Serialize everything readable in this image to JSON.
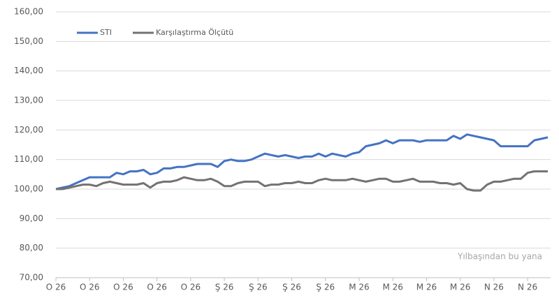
{
  "chart_data": {
    "type": "line",
    "annotation": "Yılbaşından bu yana",
    "categories": [
      "O 26",
      null,
      null,
      null,
      null,
      "O 26",
      null,
      null,
      null,
      null,
      "O 26",
      null,
      null,
      null,
      null,
      "O 26",
      null,
      null,
      null,
      null,
      "O 26",
      null,
      null,
      null,
      null,
      "Ş 26",
      null,
      null,
      null,
      null,
      "Ş 26",
      null,
      null,
      null,
      null,
      "Ş 26",
      null,
      null,
      null,
      null,
      "Ş 26",
      null,
      null,
      null,
      null,
      "M 26",
      null,
      null,
      null,
      null,
      "M 26",
      null,
      null,
      null,
      null,
      "M 26",
      null,
      null,
      null,
      null,
      "M 26",
      null,
      null,
      null,
      null,
      "N 26",
      null,
      null,
      null,
      null,
      "N 26",
      null,
      null,
      null
    ],
    "series": [
      {
        "name": "STI",
        "color": "#4472c4",
        "values": [
          100,
          100.5,
          101,
          102,
          103,
          104,
          104,
          104,
          104,
          105.5,
          105,
          106,
          106,
          106.5,
          105,
          105.5,
          107,
          107,
          107.5,
          107.5,
          108,
          108.5,
          108.5,
          108.5,
          107.5,
          109.5,
          110,
          109.5,
          109.5,
          110,
          111,
          112,
          111.5,
          111,
          111.5,
          111,
          110.5,
          111,
          111,
          112,
          111,
          112,
          111.5,
          111,
          112,
          112.5,
          114.5,
          115,
          115.5,
          116.5,
          115.5,
          116.5,
          116.5,
          116.5,
          116,
          116.5,
          116.5,
          116.5,
          116.5,
          118,
          117,
          118.5,
          118,
          117.5,
          117,
          116.5,
          114.5,
          114.5,
          114.5,
          114.5,
          114.5,
          116.5,
          117,
          117.5
        ]
      },
      {
        "name": "Karşılaştırma Ölçütü",
        "color": "#767171",
        "values": [
          100,
          100,
          100.5,
          101,
          101.5,
          101.5,
          101,
          102,
          102.5,
          102,
          101.5,
          101.5,
          101.5,
          102,
          100.5,
          102,
          102.5,
          102.5,
          103,
          104,
          103.5,
          103,
          103,
          103.5,
          102.5,
          101,
          101,
          102,
          102.5,
          102.5,
          102.5,
          101,
          101.5,
          101.5,
          102,
          102,
          102.5,
          102,
          102,
          103,
          103.5,
          103,
          103,
          103,
          103.5,
          103,
          102.5,
          103,
          103.5,
          103.5,
          102.5,
          102.5,
          103,
          103.5,
          102.5,
          102.5,
          102.5,
          102,
          102,
          101.5,
          102,
          100,
          99.5,
          99.5,
          101.5,
          102.5,
          102.5,
          103,
          103.5,
          103.5,
          105.5,
          106,
          106,
          106
        ]
      }
    ],
    "ylim": [
      70,
      160
    ],
    "yticks": [
      {
        "value": 70,
        "label": "70,00"
      },
      {
        "value": 80,
        "label": "80,00"
      },
      {
        "value": 90,
        "label": "90,00"
      },
      {
        "value": 100,
        "label": "100,00"
      },
      {
        "value": 110,
        "label": "110,00"
      },
      {
        "value": 120,
        "label": "120,00"
      },
      {
        "value": 130,
        "label": "130,00"
      },
      {
        "value": 140,
        "label": "140,00"
      },
      {
        "value": 150,
        "label": "150,00"
      },
      {
        "value": 160,
        "label": "160,00"
      }
    ],
    "grid": true,
    "legend": "top-left"
  }
}
